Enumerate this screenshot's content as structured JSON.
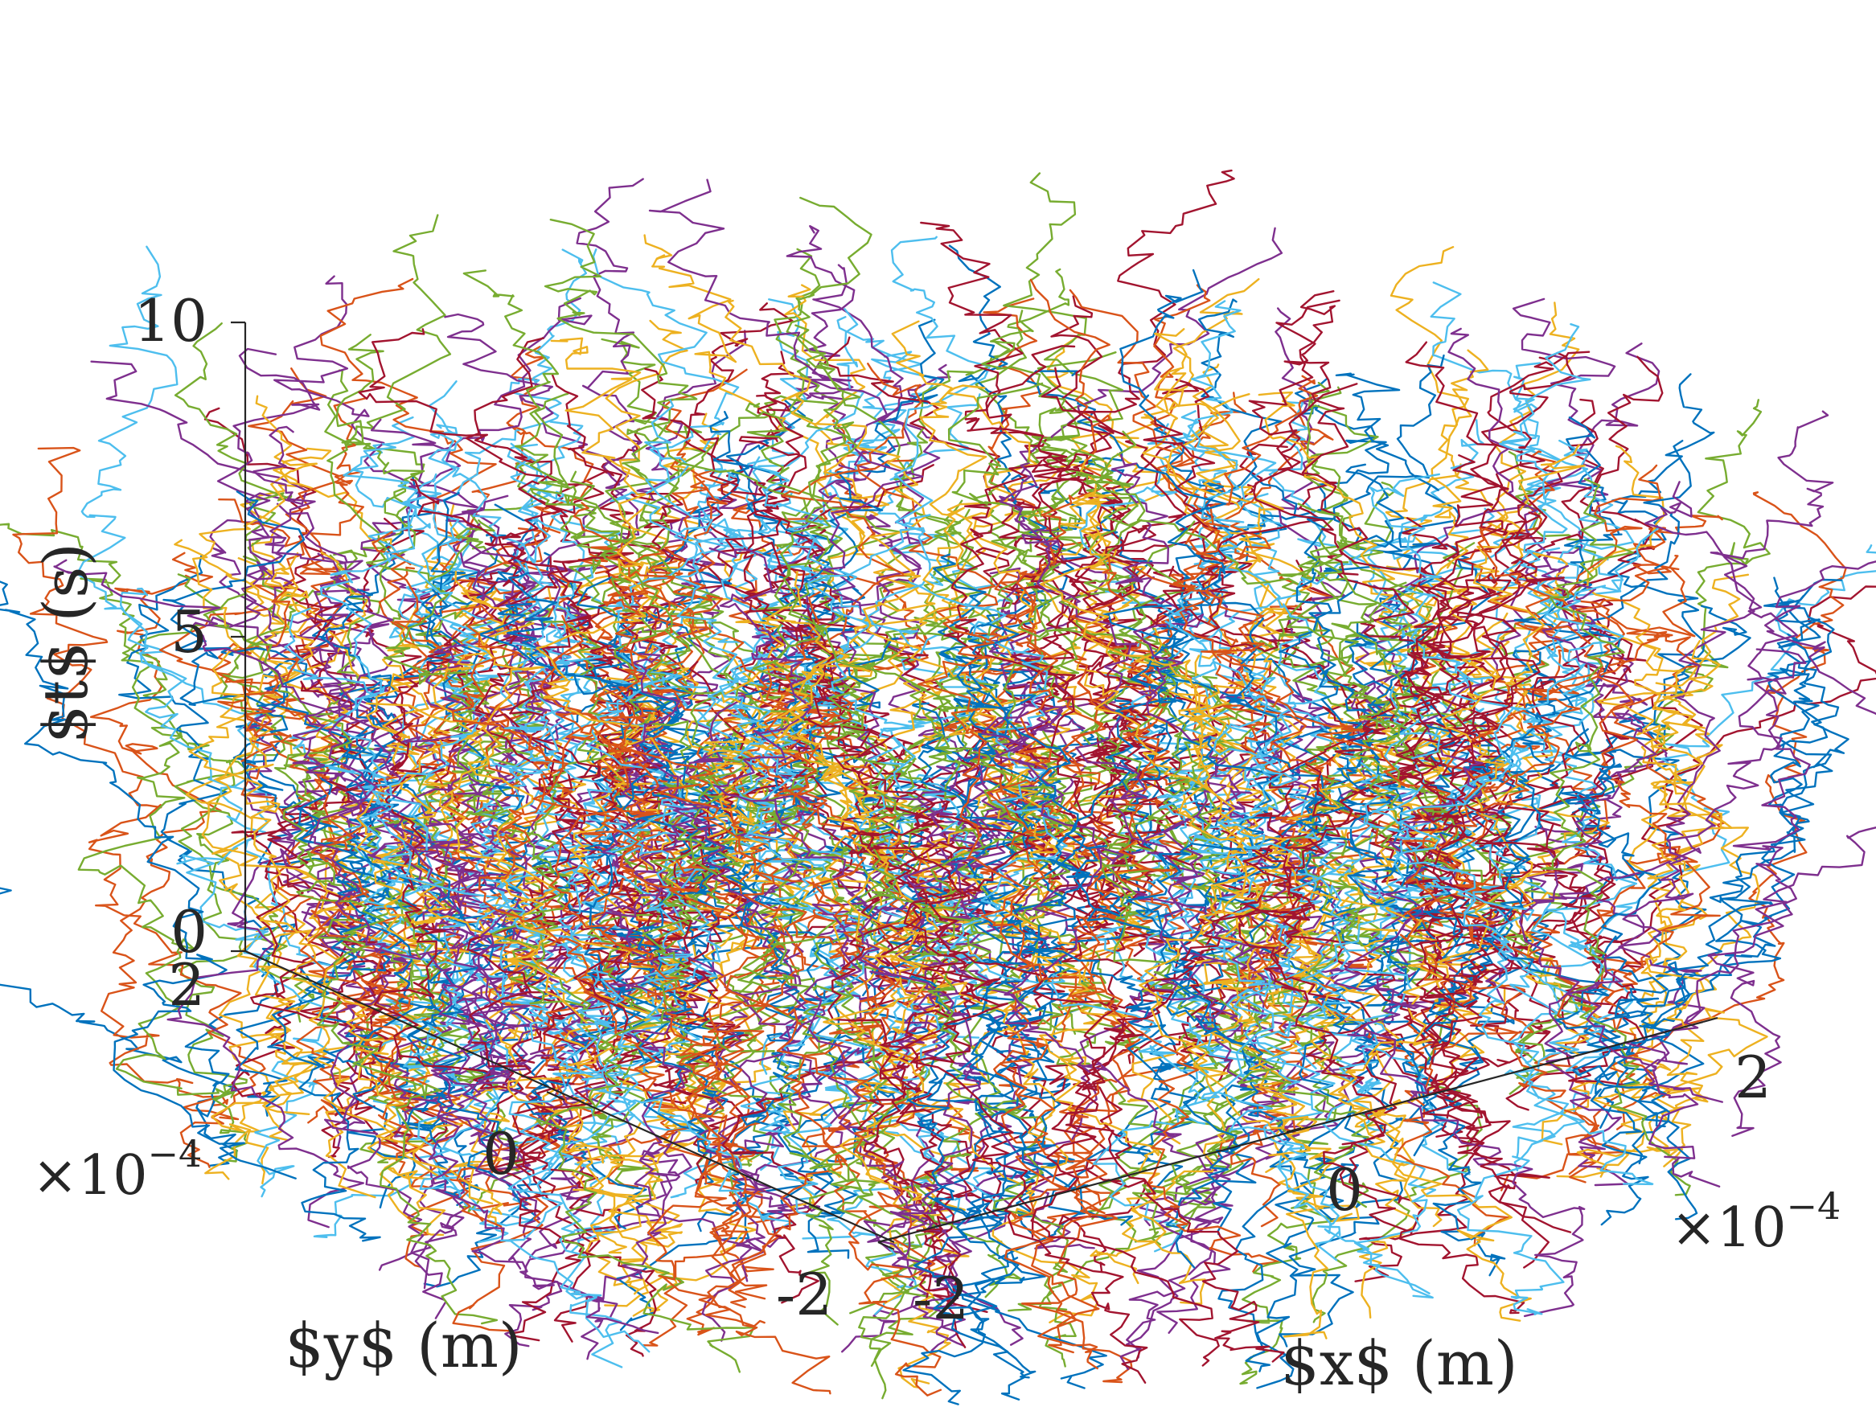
{
  "chart_data": {
    "type": "line3d",
    "description_axes": {
      "x": {
        "label": "$x$ (m)",
        "range": [
          -0.0003,
          0.0003
        ],
        "ticks": [
          -2,
          0,
          2
        ],
        "tick_labels": [
          "-2",
          "0",
          "2"
        ],
        "multiplier": "×10",
        "multiplier_exponent": "−4"
      },
      "y": {
        "label": "$y$ (m)",
        "range": [
          -0.0003,
          0.0003
        ],
        "ticks": [
          -2,
          0,
          2
        ],
        "tick_labels": [
          "-2",
          "0",
          "2"
        ],
        "multiplier": "×10",
        "multiplier_exponent": "−4"
      },
      "t": {
        "label": "$t$ (s)",
        "range": [
          0,
          10
        ],
        "ticks": [
          0,
          5,
          10
        ],
        "tick_labels": [
          "0",
          "5",
          "10"
        ]
      }
    },
    "series_count": 420,
    "trajectory_region": {
      "shape": "cylinder",
      "radius": 0.0003,
      "x_range": [
        -0.0003,
        0.0003
      ],
      "y_range": [
        -0.0003,
        0.0003
      ],
      "t_range": [
        0,
        10
      ]
    },
    "series_colors": [
      "#0072BD",
      "#D95319",
      "#EDB120",
      "#7E2F8E",
      "#77AC30",
      "#4DBEEE",
      "#A2142F"
    ],
    "grid": false,
    "legend": "none"
  }
}
